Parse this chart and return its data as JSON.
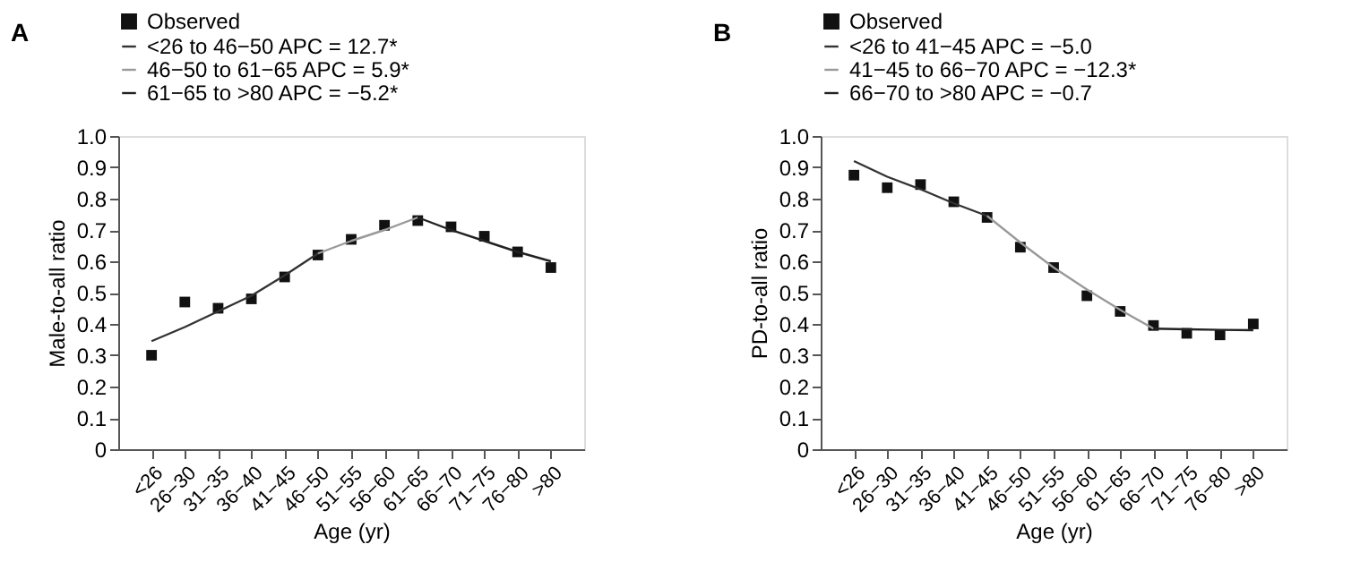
{
  "chart_data": [
    {
      "type": "line",
      "title": "A",
      "xlabel": "Age (yr)",
      "ylabel": "Male-to-all ratio",
      "categories": [
        "<26",
        "26−30",
        "31−35",
        "36−40",
        "41−45",
        "46−50",
        "51−55",
        "56−60",
        "61−65",
        "66−70",
        "71−75",
        "76−80",
        ">80"
      ],
      "ylim": [
        0,
        1.0
      ],
      "yticks": [
        0,
        0.1,
        0.2,
        0.3,
        0.4,
        0.5,
        0.6,
        0.7,
        0.8,
        0.9,
        {
          "value": 1.0,
          "label": "1.0"
        }
      ],
      "grid": false,
      "legend": "top",
      "series": [
        {
          "name": "Observed",
          "type": "scatter",
          "marker": "square",
          "color": "#111111",
          "values": [
            0.3,
            0.47,
            0.45,
            0.48,
            0.55,
            0.62,
            0.67,
            0.715,
            0.73,
            0.71,
            0.68,
            0.63,
            0.58
          ]
        },
        {
          "name": "<26 to 46−50 APC = 12.7*",
          "type": "line",
          "color": "#333333",
          "values": [
            0.345,
            0.39,
            0.44,
            0.49,
            0.555,
            0.625,
            null,
            null,
            null,
            null,
            null,
            null,
            null
          ]
        },
        {
          "name": "46−50 to 61−65 APC = 5.9*",
          "type": "line",
          "color": "#999999",
          "values": [
            null,
            null,
            null,
            null,
            null,
            0.625,
            0.665,
            0.7,
            0.74,
            null,
            null,
            null,
            null
          ]
        },
        {
          "name": "61−65 to >80 APC = −5.2*",
          "type": "line",
          "color": "#222222",
          "values": [
            null,
            null,
            null,
            null,
            null,
            null,
            null,
            null,
            0.74,
            0.7,
            0.665,
            0.63,
            0.6
          ]
        }
      ]
    },
    {
      "type": "line",
      "title": "B",
      "xlabel": "Age (yr)",
      "ylabel": "PD-to-all ratio",
      "categories": [
        "<26",
        "26−30",
        "31−35",
        "36−40",
        "41−45",
        "46−50",
        "51−55",
        "56−60",
        "61−65",
        "66−70",
        "71−75",
        "76−80",
        ">80"
      ],
      "ylim": [
        0,
        1.0
      ],
      "yticks": [
        0,
        0.1,
        0.2,
        0.3,
        0.4,
        0.5,
        0.6,
        0.7,
        0.8,
        0.9,
        {
          "value": 1.0,
          "label": "1.0"
        }
      ],
      "grid": false,
      "legend": "top",
      "series": [
        {
          "name": "Observed",
          "type": "scatter",
          "marker": "square",
          "color": "#111111",
          "values": [
            0.875,
            0.835,
            0.845,
            0.79,
            0.74,
            0.645,
            0.58,
            0.49,
            0.44,
            0.395,
            0.37,
            0.365,
            0.4
          ]
        },
        {
          "name": "<26 to 41−45 APC = −5.0",
          "type": "line",
          "color": "#333333",
          "values": [
            0.92,
            0.87,
            0.83,
            0.785,
            0.745,
            null,
            null,
            null,
            null,
            null,
            null,
            null,
            null
          ]
        },
        {
          "name": "41−45 to 66−70 APC = −12.3*",
          "type": "line",
          "color": "#999999",
          "values": [
            null,
            null,
            null,
            null,
            0.745,
            0.66,
            0.58,
            0.51,
            0.445,
            0.385,
            null,
            null,
            null
          ]
        },
        {
          "name": "66−70 to >80 APC = −0.7",
          "type": "line",
          "color": "#222222",
          "values": [
            null,
            null,
            null,
            null,
            null,
            null,
            null,
            null,
            null,
            0.385,
            0.383,
            0.381,
            0.38
          ]
        }
      ]
    }
  ]
}
